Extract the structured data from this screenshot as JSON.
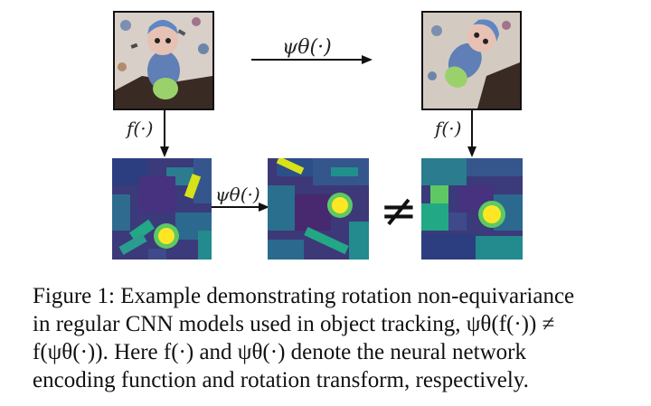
{
  "figure": {
    "transform_label": "ψθ(·)",
    "encoder_label": "f(·)",
    "inequality_symbol": "≠",
    "caption": {
      "line1": "Figure 1: Example demonstrating rotation non-equivariance",
      "line2": "in regular CNN models used in object tracking, ψθ(f(·)) ≠",
      "line3": "f(ψθ(·)).  Here f(·) and ψθ(·) denote the neural network",
      "line4": "encoding function and rotation transform, respectively."
    },
    "panels": {
      "input_image": "toy doll held in hand, upright",
      "rotated_image": "toy doll held in hand, rotated",
      "heatmap_colors": [
        "#440154",
        "#3b528b",
        "#21908d",
        "#5dc963",
        "#fde725"
      ]
    }
  }
}
